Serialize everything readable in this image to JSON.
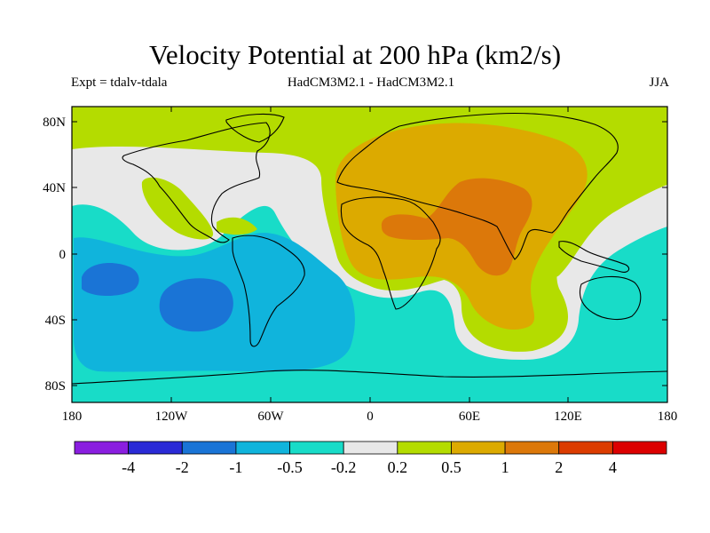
{
  "header": {
    "title": "Velocity Potential at 200 hPa (km2/s)",
    "experiment": "Expt = tdalv-tdala",
    "models": "HadCM3M2.1 - HadCM3M2.1",
    "season": "JJA"
  },
  "map": {
    "x_ticks": [
      "180",
      "120W",
      "60W",
      "0",
      "60E",
      "120E",
      "180"
    ],
    "y_ticks": [
      "80N",
      "40N",
      "0",
      "40S",
      "80S"
    ]
  },
  "colorbar": {
    "labels": [
      "-4",
      "-2",
      "-1",
      "-0.5",
      "-0.2",
      "0.2",
      "0.5",
      "1",
      "2",
      "4"
    ],
    "colors": [
      "#8a1ee0",
      "#2a2ad6",
      "#1a74d6",
      "#10b4dc",
      "#18dcc8",
      "#e8e8e8",
      "#b4dc00",
      "#dcaa00",
      "#dc780a",
      "#dc3c00",
      "#dc0000"
    ]
  },
  "field_colors": {
    "v_minus_1": "#1a74d6",
    "v_minus_05": "#10b4dc",
    "v_minus_02": "#18dcc8",
    "v_zero": "#e8e8e8",
    "v_plus_02": "#b4dc00",
    "v_plus_05": "#dcaa00",
    "v_plus_1": "#dc780a",
    "coast": "#000000"
  }
}
